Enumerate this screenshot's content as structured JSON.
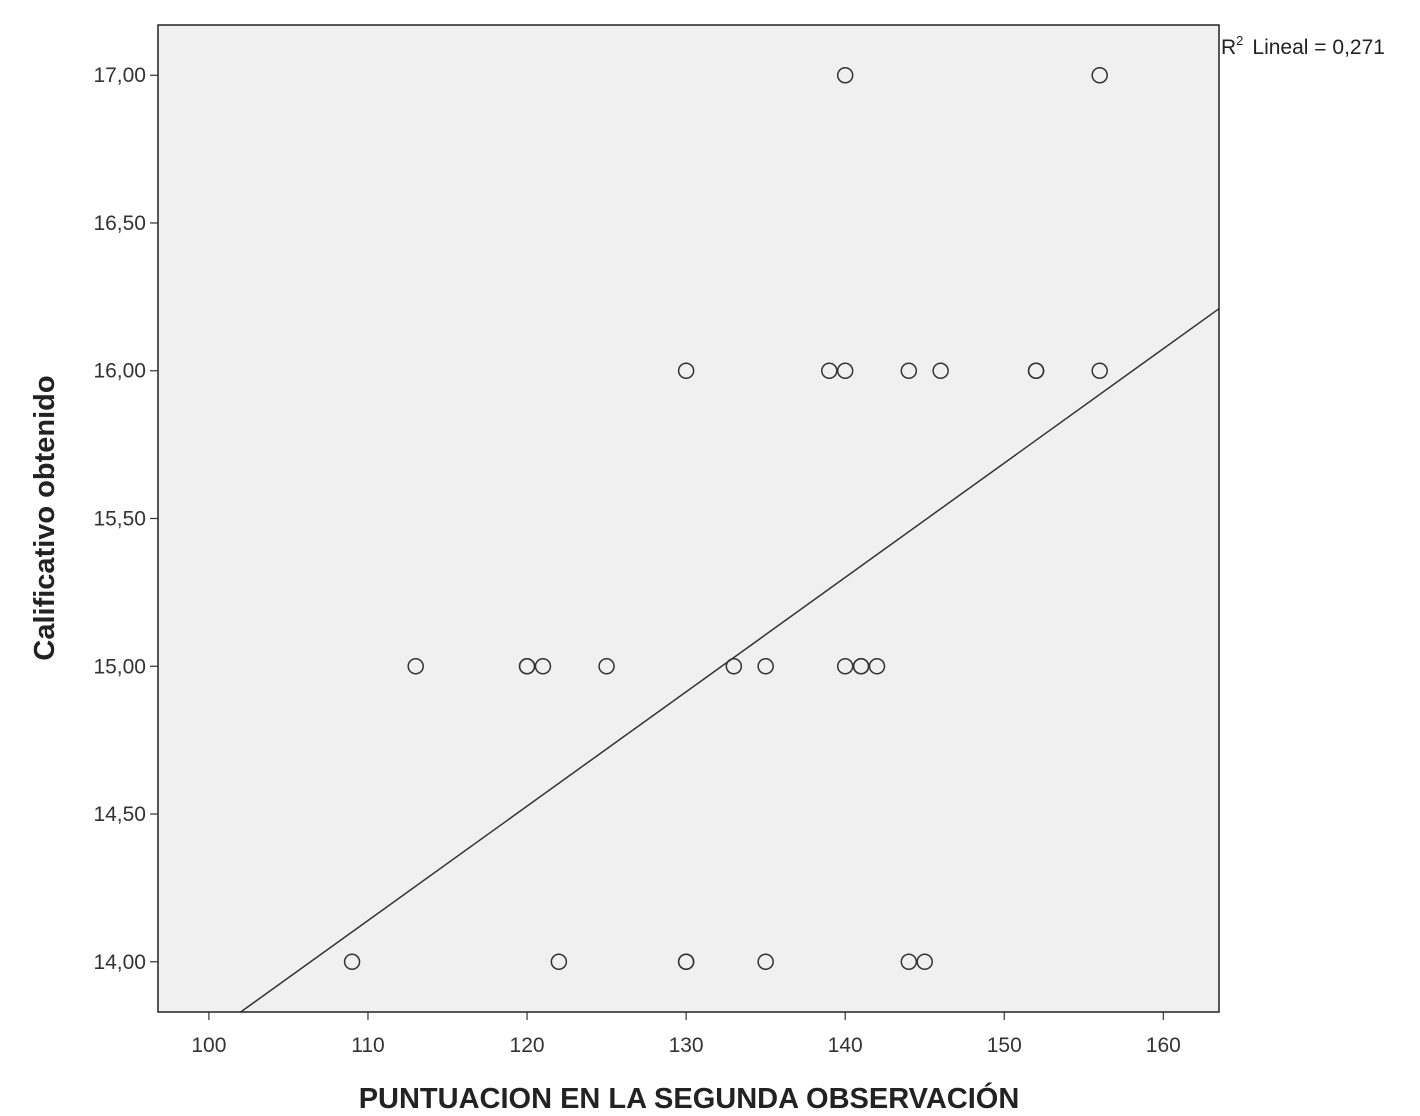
{
  "chart_data": {
    "type": "scatter",
    "title": "",
    "xlabel": "PUNTUACION EN LA SEGUNDA OBSERVACIÓN",
    "ylabel": "Calificativo obtenido",
    "xlim": [
      96.8,
      163.5
    ],
    "ylim": [
      13.83,
      17.17
    ],
    "x_ticks": [
      100,
      110,
      120,
      130,
      140,
      150,
      160
    ],
    "x_tick_labels": [
      "100",
      "110",
      "120",
      "130",
      "140",
      "150",
      "160"
    ],
    "y_ticks": [
      14.0,
      14.5,
      15.0,
      15.5,
      16.0,
      16.5,
      17.0
    ],
    "y_tick_labels": [
      "14,00",
      "14,50",
      "15,00",
      "15,50",
      "16,00",
      "16,50",
      "17,00"
    ],
    "grid": false,
    "points": [
      {
        "x": 140,
        "y": 17
      },
      {
        "x": 156,
        "y": 17
      },
      {
        "x": 130,
        "y": 16
      },
      {
        "x": 139,
        "y": 16
      },
      {
        "x": 140,
        "y": 16
      },
      {
        "x": 144,
        "y": 16
      },
      {
        "x": 146,
        "y": 16
      },
      {
        "x": 152,
        "y": 16
      },
      {
        "x": 152,
        "y": 16
      },
      {
        "x": 156,
        "y": 16
      },
      {
        "x": 113,
        "y": 15
      },
      {
        "x": 120,
        "y": 15
      },
      {
        "x": 120,
        "y": 15
      },
      {
        "x": 121,
        "y": 15
      },
      {
        "x": 125,
        "y": 15
      },
      {
        "x": 133,
        "y": 15
      },
      {
        "x": 135,
        "y": 15
      },
      {
        "x": 140,
        "y": 15
      },
      {
        "x": 141,
        "y": 15
      },
      {
        "x": 141,
        "y": 15
      },
      {
        "x": 142,
        "y": 15
      },
      {
        "x": 109,
        "y": 14
      },
      {
        "x": 122,
        "y": 14
      },
      {
        "x": 130,
        "y": 14
      },
      {
        "x": 130,
        "y": 14
      },
      {
        "x": 135,
        "y": 14
      },
      {
        "x": 144,
        "y": 14
      },
      {
        "x": 145,
        "y": 14
      }
    ],
    "fit_line": {
      "type": "linear",
      "x1": 102,
      "y1": 13.83,
      "x2": 163.5,
      "y2": 16.21
    },
    "annotation": {
      "r2_symbol": "R",
      "r2_superscript": "2",
      "r2_text": "Lineal = 0,271"
    },
    "colors": {
      "plot_background": "#f0f0f0",
      "frame": "#222222",
      "marker_stroke": "#333333",
      "line": "#333333"
    }
  }
}
